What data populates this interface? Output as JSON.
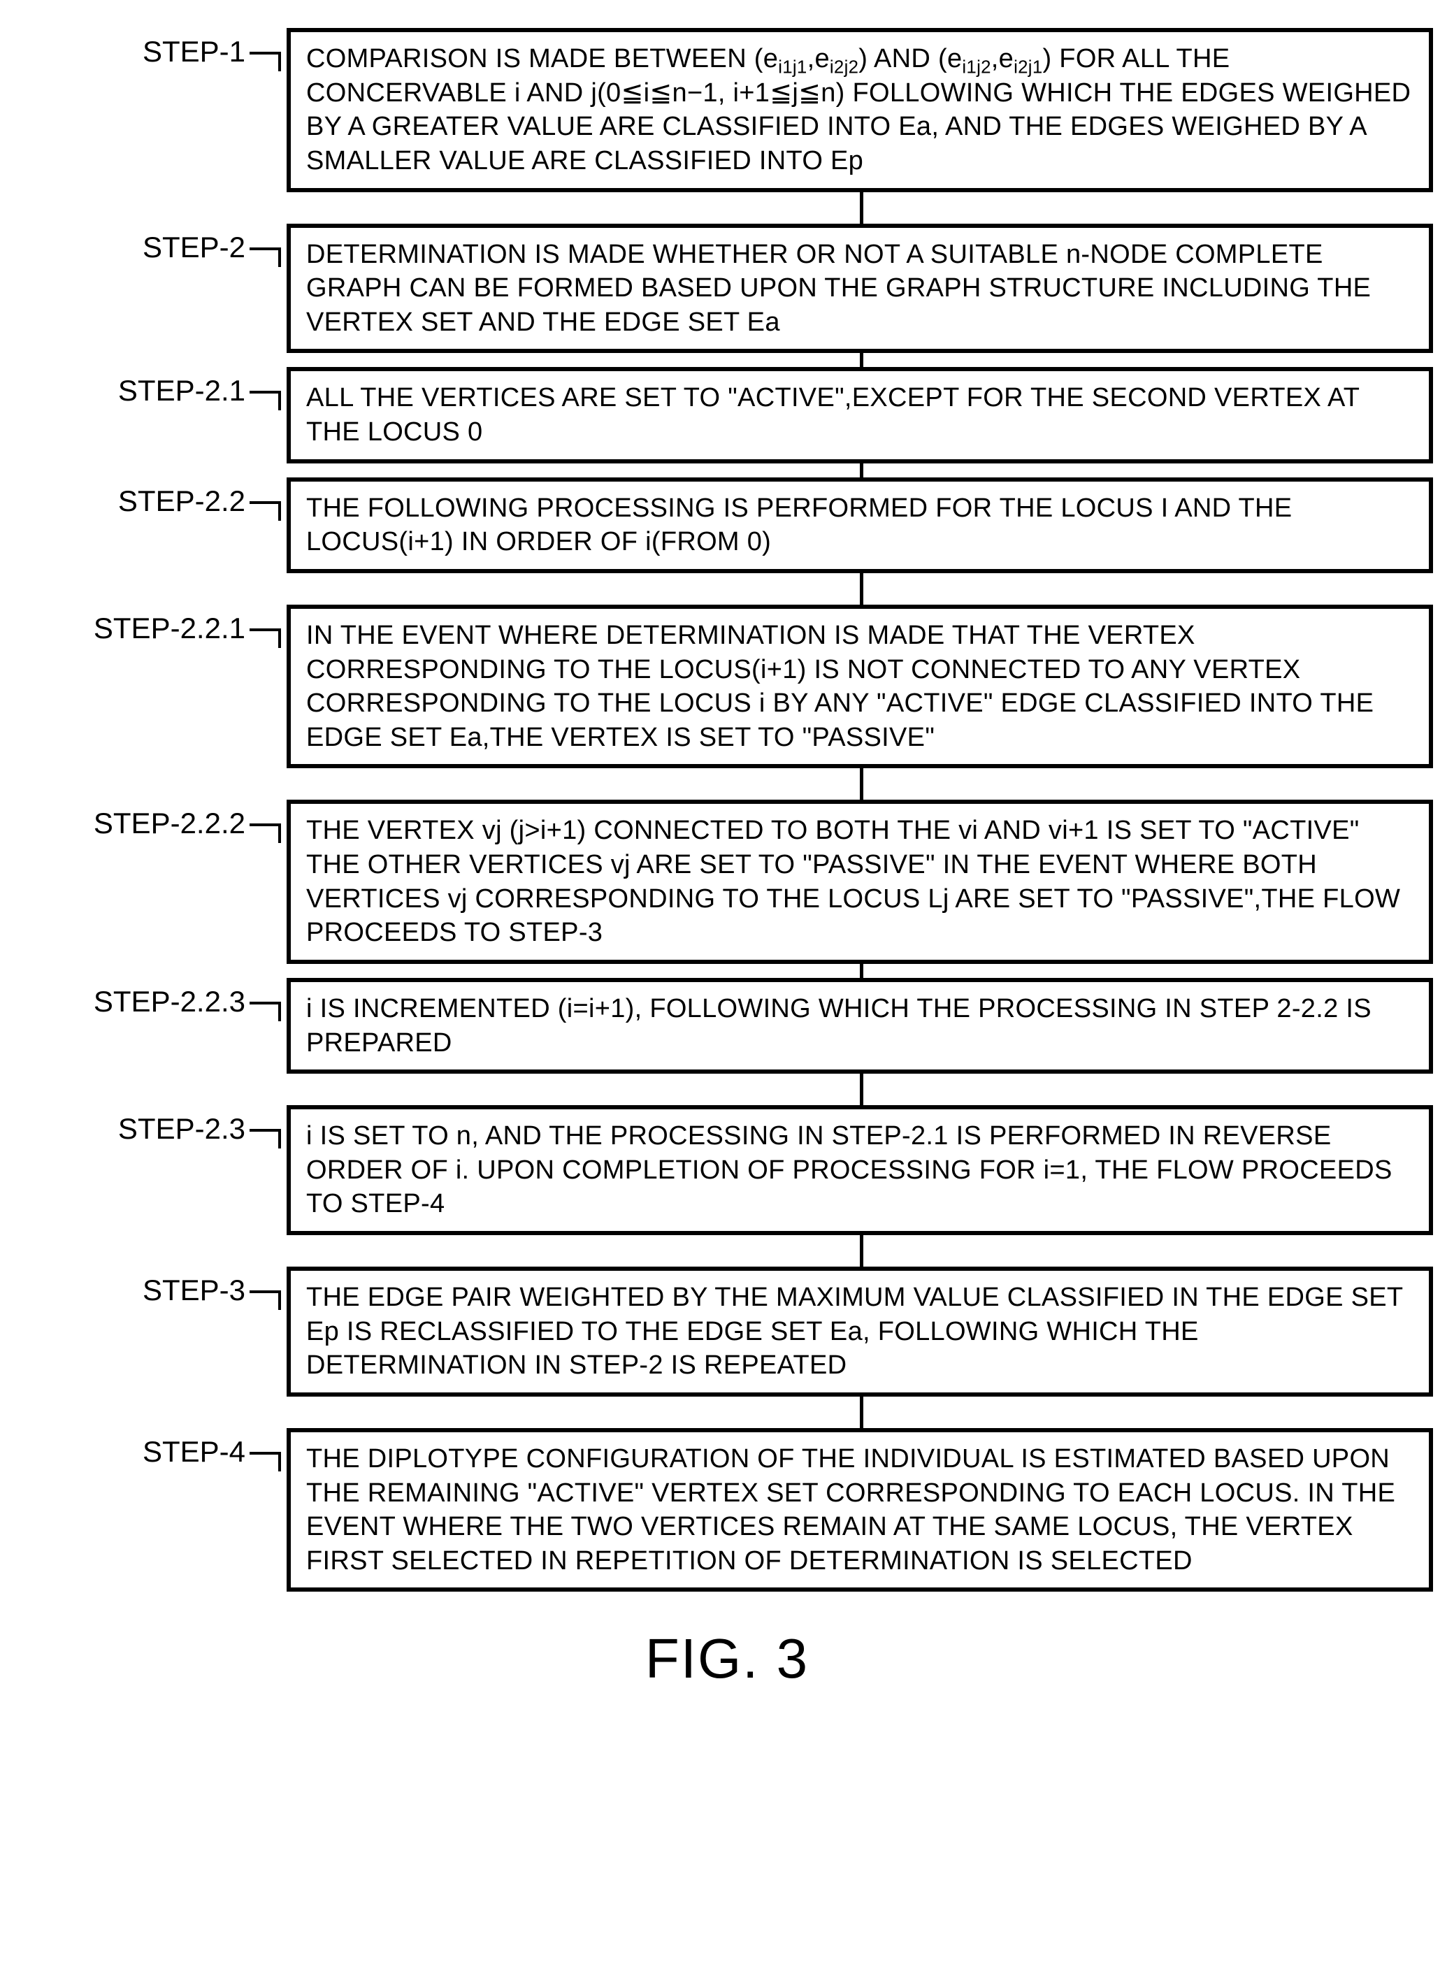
{
  "figure": {
    "title": "FIG. 3",
    "box_border_width": 6,
    "box_border_color": "#000000",
    "connector_color": "#000000",
    "connector_width": 5,
    "background_color": "#ffffff",
    "font_family": "Arial, Helvetica, sans-serif",
    "label_fontsize": 42,
    "box_fontsize": 38,
    "title_fontsize": 80,
    "label_col_width": 380
  },
  "steps": [
    {
      "label": "STEP-1",
      "text": "COMPARISON IS MADE BETWEEN (e_{i1j1},e_{i2j2}) AND (e_{i1j2},e_{i2j1}) FOR ALL THE CONCERVABLE i AND j(0≦i≦n−1, i+1≦j≦n) FOLLOWING WHICH THE EDGES WEIGHED BY A GREATER VALUE ARE CLASSIFIED INTO Ea, AND THE EDGES WEIGHED BY A SMALLER VALUE ARE CLASSIFIED INTO Ep",
      "connector_after": 45
    },
    {
      "label": "STEP-2",
      "text": "DETERMINATION IS MADE WHETHER OR NOT A SUITABLE n-NODE COMPLETE GRAPH CAN BE FORMED BASED UPON THE GRAPH STRUCTURE INCLUDING THE VERTEX SET AND THE EDGE SET Ea",
      "connector_after": 20
    },
    {
      "label": "STEP-2.1",
      "text": "ALL THE VERTICES ARE SET TO \"ACTIVE\",EXCEPT FOR THE SECOND VERTEX AT THE LOCUS 0",
      "connector_after": 20
    },
    {
      "label": "STEP-2.2",
      "text": "THE FOLLOWING PROCESSING IS PERFORMED FOR THE LOCUS I AND THE LOCUS(i+1) IN ORDER OF i(FROM 0)",
      "connector_after": 45
    },
    {
      "label": "STEP-2.2.1",
      "text": "IN THE EVENT WHERE DETERMINATION IS MADE THAT THE VERTEX CORRESPONDING TO THE LOCUS(i+1) IS NOT CONNECTED TO ANY VERTEX CORRESPONDING TO THE LOCUS i BY ANY \"ACTIVE\" EDGE CLASSIFIED INTO THE EDGE SET Ea,THE VERTEX IS SET TO \"PASSIVE\"",
      "connector_after": 45
    },
    {
      "label": "STEP-2.2.2",
      "text": "THE VERTEX vj (j>i+1) CONNECTED TO BOTH THE vi AND vi+1 IS SET TO \"ACTIVE\" THE OTHER VERTICES vj ARE SET TO \"PASSIVE\" IN THE EVENT WHERE BOTH VERTICES vj CORRESPONDING TO THE LOCUS Lj ARE SET TO \"PASSIVE\",THE FLOW PROCEEDS TO STEP-3",
      "connector_after": 20
    },
    {
      "label": "STEP-2.2.3",
      "text": "i IS INCREMENTED (i=i+1), FOLLOWING WHICH THE PROCESSING IN STEP 2-2.2 IS PREPARED",
      "connector_after": 45
    },
    {
      "label": "STEP-2.3",
      "text": "i IS SET TO n, AND THE PROCESSING IN STEP-2.1 IS PERFORMED IN REVERSE ORDER OF i. UPON COMPLETION OF PROCESSING FOR i=1, THE FLOW PROCEEDS TO STEP-4",
      "connector_after": 45
    },
    {
      "label": "STEP-3",
      "text": "THE EDGE PAIR WEIGHTED BY THE MAXIMUM VALUE CLASSIFIED IN THE EDGE SET Ep IS RECLASSIFIED TO THE EDGE SET Ea, FOLLOWING WHICH THE DETERMINATION IN STEP-2 IS REPEATED",
      "connector_after": 45
    },
    {
      "label": "STEP-4",
      "text": "THE DIPLOTYPE CONFIGURATION OF THE INDIVIDUAL IS ESTIMATED BASED UPON THE REMAINING \"ACTIVE\" VERTEX SET CORRESPONDING TO EACH LOCUS. IN THE EVENT WHERE THE TWO VERTICES REMAIN AT THE SAME LOCUS, THE VERTEX FIRST SELECTED IN REPETITION OF DETERMINATION IS SELECTED",
      "connector_after": 0
    }
  ]
}
